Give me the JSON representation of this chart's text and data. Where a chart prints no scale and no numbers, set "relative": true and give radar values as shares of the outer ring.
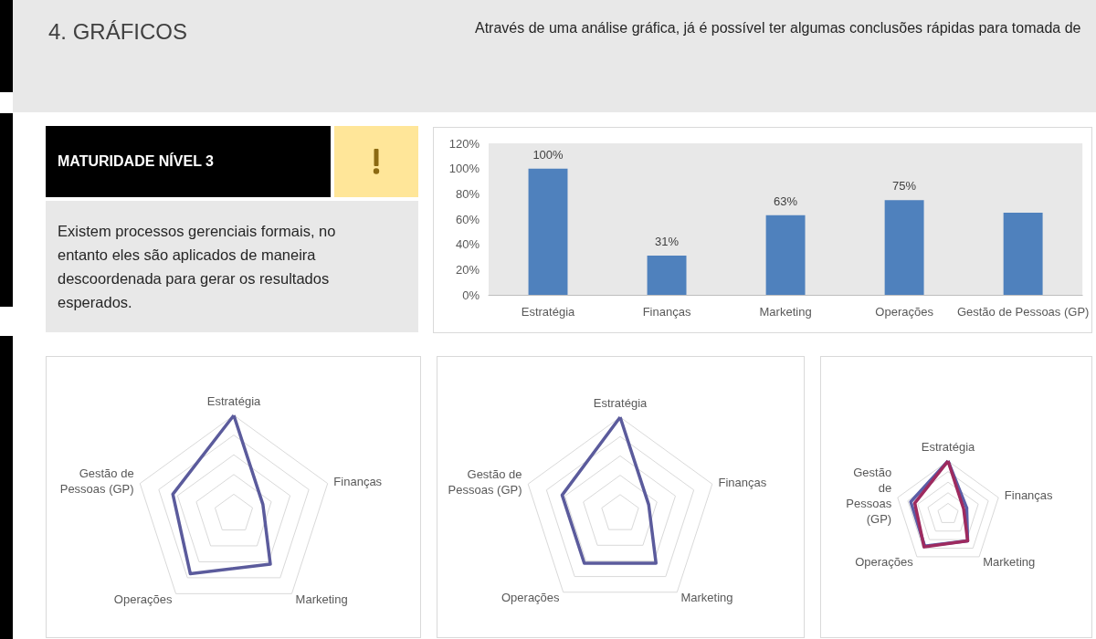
{
  "chart_data": [
    {
      "type": "other",
      "title": "4. GRÁFICOS",
      "annotations": [
        "Através de uma análise gráfica, já é possível ter algumas conclusões rápidas para tomada de"
      ]
    },
    {
      "type": "other",
      "title": "MATURIDADE NÍVEL 3",
      "annotations": [
        "Existem processos gerenciais formais, no entanto eles são aplicados de maneira descoordenada para gerar os resultados esperados."
      ]
    },
    {
      "type": "bar",
      "categories": [
        "Estratégia",
        "Finanças",
        "Marketing",
        "Operações",
        "Gestão de Pessoas (GP)"
      ],
      "values": [
        100,
        31,
        63,
        75,
        65
      ],
      "color": "#4f81bd",
      "ylim": [
        0,
        120
      ],
      "yticks": [
        {
          "value": 0,
          "label": "0%"
        },
        {
          "value": 20,
          "label": "20%"
        },
        {
          "value": 40,
          "label": "40%"
        },
        {
          "value": 60,
          "label": "60%"
        },
        {
          "value": 80,
          "label": "80%"
        },
        {
          "value": 100,
          "label": "100%"
        },
        {
          "value": 120,
          "label": "120%"
        }
      ],
      "value_labels": [
        "100%",
        "31%",
        "63%",
        "75%",
        null
      ]
    },
    {
      "type": "radar",
      "categories": [
        "Estratégia",
        "Finanças",
        "Marketing",
        "Operações",
        "Gestão de Pessoas (GP)"
      ],
      "relative": true,
      "series": [
        {
          "color": "#5b5b9c",
          "values": [
            1,
            0.31,
            0.63,
            0.75,
            0.65
          ]
        }
      ]
    },
    {
      "type": "radar",
      "categories": [
        "Estratégia",
        "Finanças",
        "Marketing",
        "Operações",
        "Gestão de Pessoas (GP)"
      ],
      "relative": true,
      "series": [
        {
          "color": "#5b5b9c",
          "values": [
            1,
            0.31,
            0.63,
            0.63,
            0.63
          ]
        }
      ]
    },
    {
      "type": "radar",
      "categories": [
        "Estratégia",
        "Finanças",
        "Marketing",
        "Operações",
        "Gestão de Pessoas (GP)"
      ],
      "relative": true,
      "series": [
        {
          "color": "#5b5ea6",
          "values": [
            1,
            0.37,
            0.63,
            0.75,
            0.74
          ]
        },
        {
          "color": "#9e2a5f",
          "values": [
            1,
            0.31,
            0.63,
            0.77,
            0.66
          ]
        }
      ]
    }
  ]
}
